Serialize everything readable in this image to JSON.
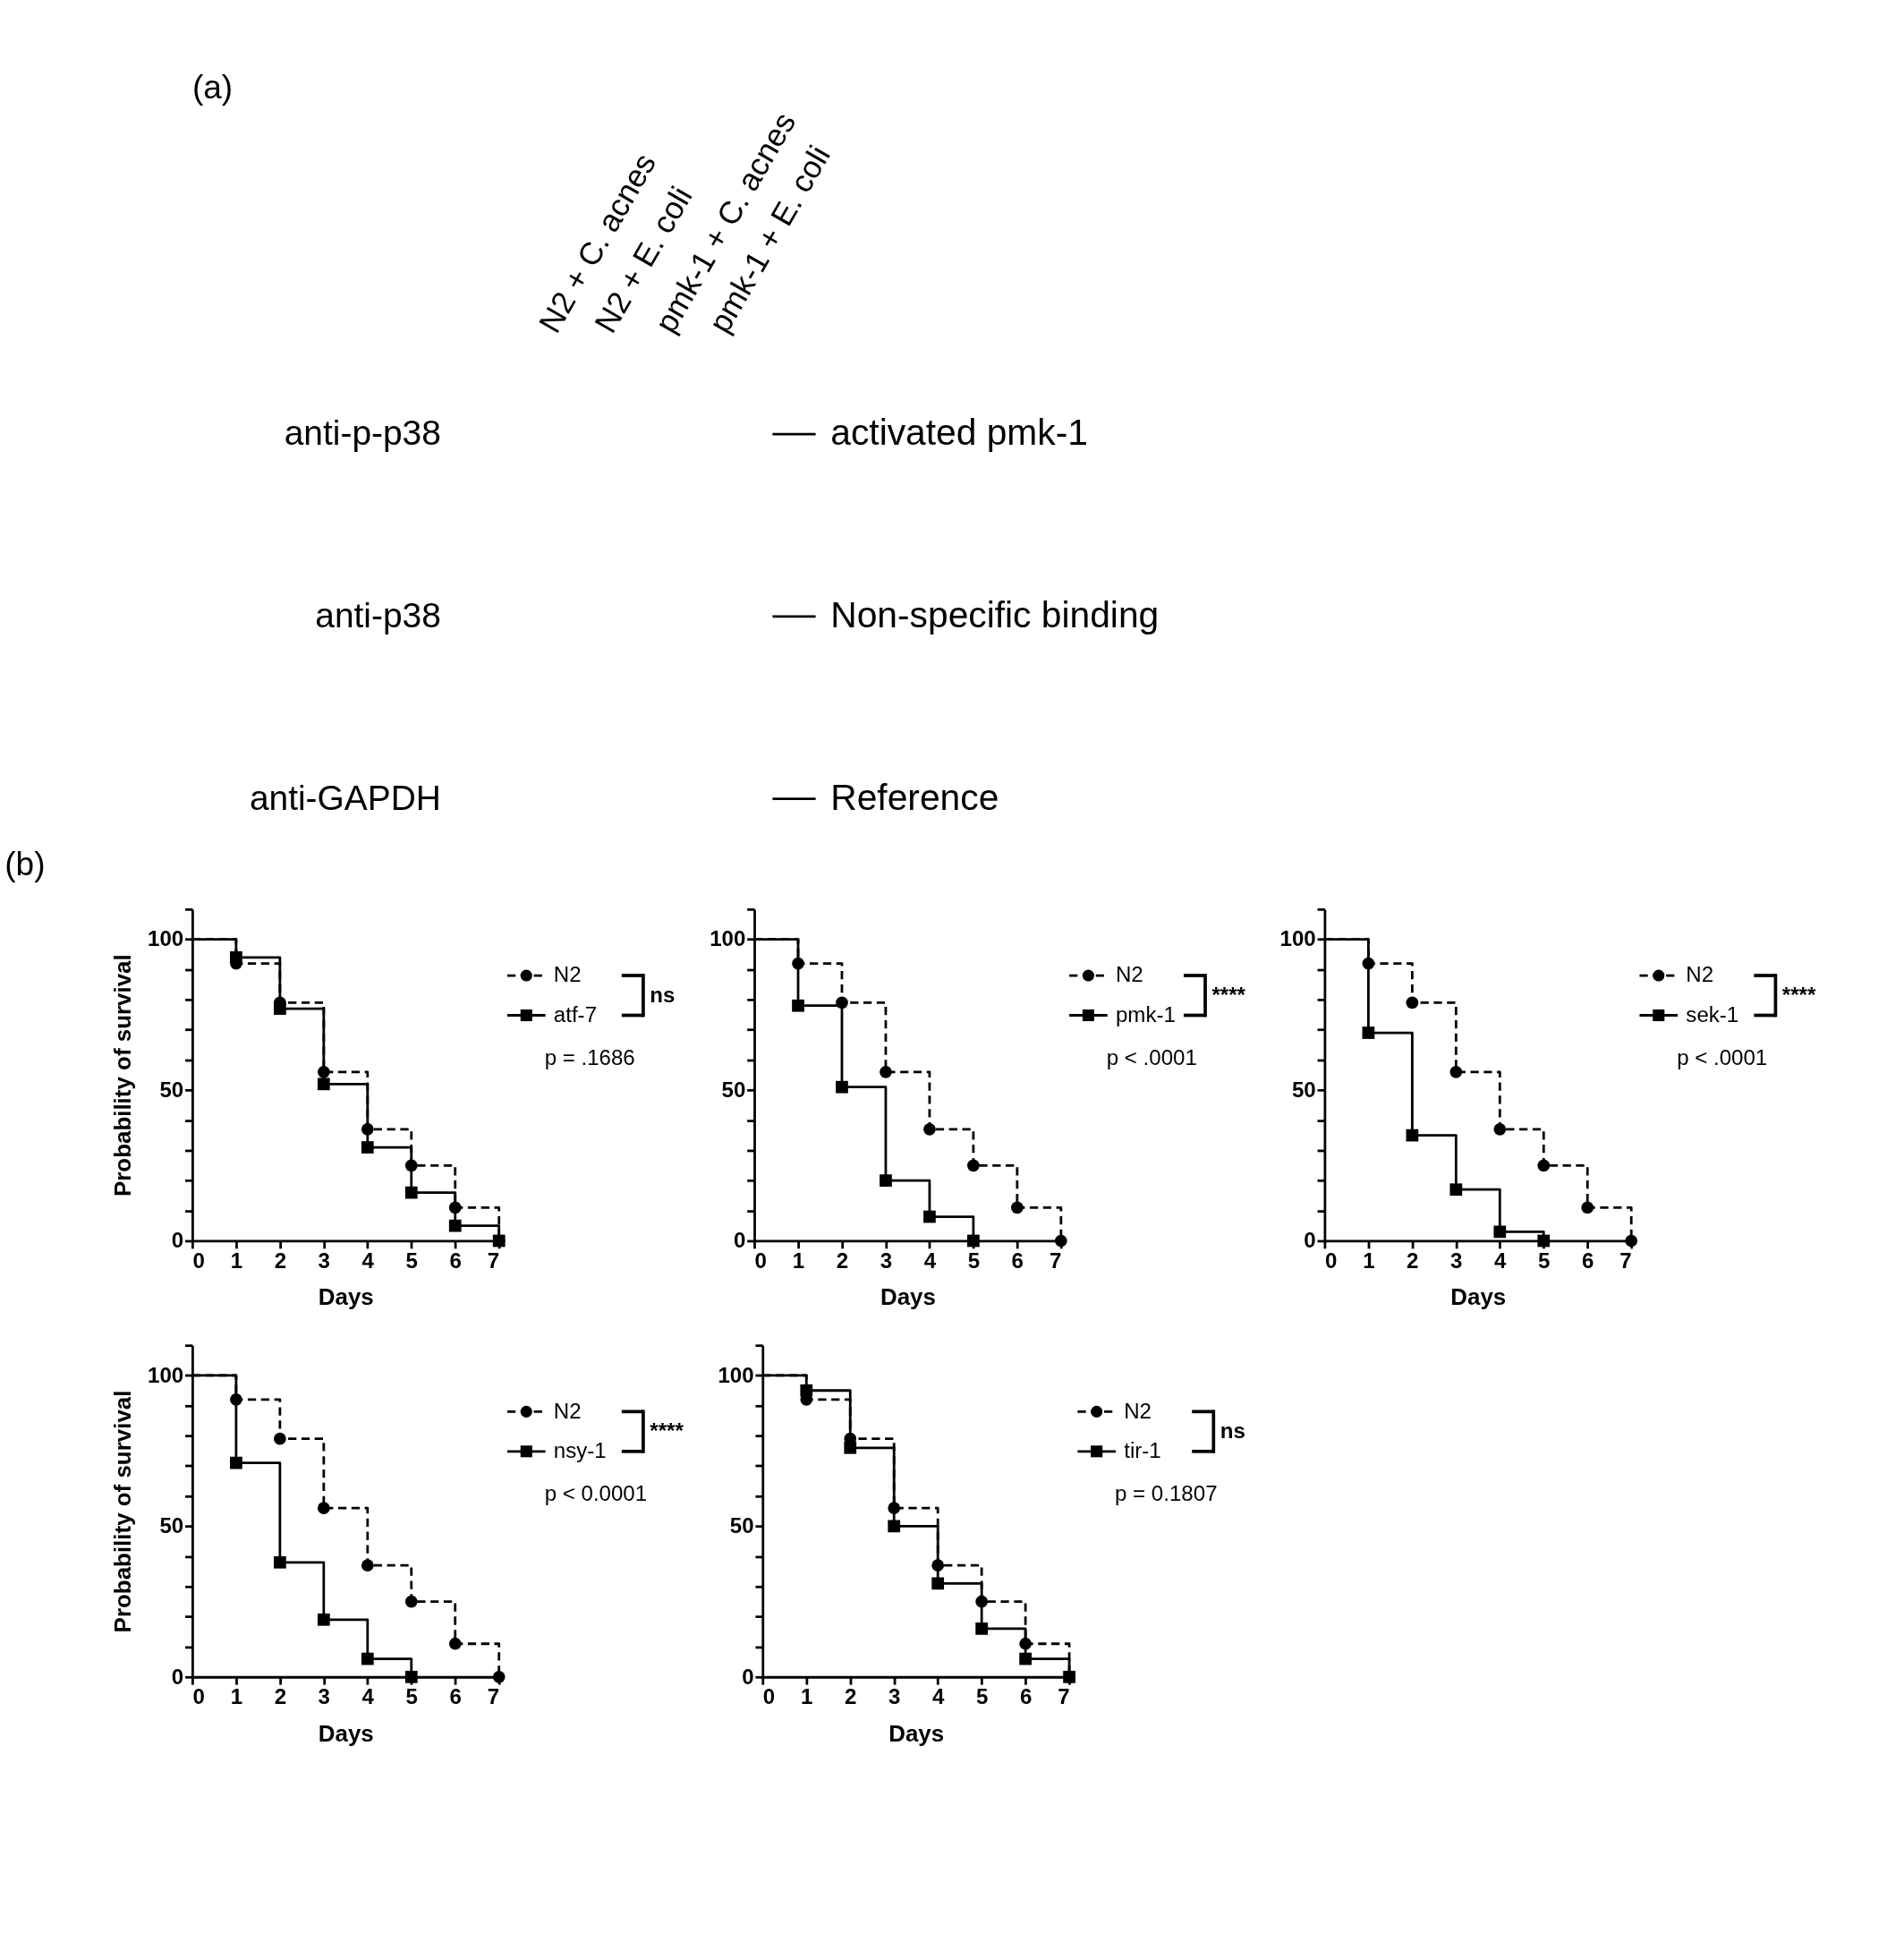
{
  "chart_data": [
    {
      "type": "other",
      "title": "(a)",
      "annotations": [
        "N2 + C. acnes",
        "N2 + E. coli",
        "pmk-1 + C. acnes",
        "pmk-1 + E. coli",
        "anti-p-p38",
        "anti-p38",
        "anti-GAPDH",
        "activated pmk-1",
        "Non-specific binding",
        "Reference"
      ]
    },
    {
      "type": "step",
      "title": "(b)",
      "xlabel": "Days",
      "ylabel": "Probability of survival",
      "xlim": [
        0,
        7
      ],
      "xticks": [
        0,
        1,
        2,
        3,
        4,
        5,
        6,
        7
      ],
      "ylim": [
        0,
        110
      ],
      "yticks": [
        0,
        {
          "value": 10,
          "label": null
        },
        {
          "value": 20,
          "label": null
        },
        {
          "value": 30,
          "label": null
        },
        {
          "value": 40,
          "label": null
        },
        50,
        {
          "value": 60,
          "label": null
        },
        {
          "value": 70,
          "label": null
        },
        {
          "value": 80,
          "label": null
        },
        {
          "value": 90,
          "label": null
        },
        100,
        {
          "value": 110,
          "label": null
        }
      ],
      "legend": "right",
      "annotations": [
        "ns",
        "p = .1686"
      ],
      "series": [
        {
          "name": "N2",
          "color": "#000000",
          "marker": "circle",
          "line_style": "dashed",
          "x": [
            0,
            1,
            2,
            3,
            4,
            5,
            6,
            7
          ],
          "values": [
            100,
            92,
            79,
            56,
            37,
            25,
            11,
            0
          ]
        },
        {
          "name": "atf-7",
          "color": "#000000",
          "marker": "square",
          "line_style": "solid",
          "x": [
            0,
            1,
            2,
            3,
            4,
            5,
            6,
            7
          ],
          "values": [
            100,
            94,
            77,
            52,
            31,
            16,
            5,
            0
          ]
        }
      ]
    },
    {
      "type": "step",
      "xlabel": "Days",
      "xlim": [
        0,
        7
      ],
      "xticks": [
        0,
        1,
        2,
        3,
        4,
        5,
        6,
        7
      ],
      "ylim": [
        0,
        110
      ],
      "yticks": [
        0,
        {
          "value": 10,
          "label": null
        },
        {
          "value": 20,
          "label": null
        },
        {
          "value": 30,
          "label": null
        },
        {
          "value": 40,
          "label": null
        },
        50,
        {
          "value": 60,
          "label": null
        },
        {
          "value": 70,
          "label": null
        },
        {
          "value": 80,
          "label": null
        },
        {
          "value": 90,
          "label": null
        },
        100,
        {
          "value": 110,
          "label": null
        }
      ],
      "legend": "right",
      "annotations": [
        "****",
        "p < .0001"
      ],
      "series": [
        {
          "name": "N2",
          "color": "#000000",
          "marker": "circle",
          "line_style": "dashed",
          "x": [
            0,
            1,
            2,
            3,
            4,
            5,
            6,
            7
          ],
          "values": [
            100,
            92,
            79,
            56,
            37,
            25,
            11,
            0
          ]
        },
        {
          "name": "pmk-1",
          "color": "#000000",
          "marker": "square",
          "line_style": "solid",
          "x": [
            0,
            1,
            2,
            3,
            4,
            5
          ],
          "values": [
            100,
            78,
            51,
            20,
            8,
            0
          ]
        }
      ]
    },
    {
      "type": "step",
      "xlabel": "Days",
      "xlim": [
        0,
        7
      ],
      "xticks": [
        0,
        1,
        2,
        3,
        4,
        5,
        6,
        7
      ],
      "ylim": [
        0,
        110
      ],
      "yticks": [
        0,
        {
          "value": 10,
          "label": null
        },
        {
          "value": 20,
          "label": null
        },
        {
          "value": 30,
          "label": null
        },
        {
          "value": 40,
          "label": null
        },
        50,
        {
          "value": 60,
          "label": null
        },
        {
          "value": 70,
          "label": null
        },
        {
          "value": 80,
          "label": null
        },
        {
          "value": 90,
          "label": null
        },
        100,
        {
          "value": 110,
          "label": null
        }
      ],
      "legend": "right",
      "annotations": [
        "****",
        "p < .0001"
      ],
      "series": [
        {
          "name": "N2",
          "color": "#000000",
          "marker": "circle",
          "line_style": "dashed",
          "x": [
            0,
            1,
            2,
            3,
            4,
            5,
            6,
            7
          ],
          "values": [
            100,
            92,
            79,
            56,
            37,
            25,
            11,
            0
          ]
        },
        {
          "name": "sek-1",
          "color": "#000000",
          "marker": "square",
          "line_style": "solid",
          "x": [
            0,
            1,
            2,
            3,
            4,
            5
          ],
          "values": [
            100,
            69,
            35,
            17,
            3,
            0
          ]
        }
      ]
    },
    {
      "type": "step",
      "xlabel": "Days",
      "ylabel": "Probability of survival",
      "xlim": [
        0,
        7
      ],
      "xticks": [
        0,
        1,
        2,
        3,
        4,
        5,
        6,
        7
      ],
      "ylim": [
        0,
        110
      ],
      "yticks": [
        0,
        {
          "value": 10,
          "label": null
        },
        {
          "value": 20,
          "label": null
        },
        {
          "value": 30,
          "label": null
        },
        {
          "value": 40,
          "label": null
        },
        50,
        {
          "value": 60,
          "label": null
        },
        {
          "value": 70,
          "label": null
        },
        {
          "value": 80,
          "label": null
        },
        {
          "value": 90,
          "label": null
        },
        100,
        {
          "value": 110,
          "label": null
        }
      ],
      "legend": "right",
      "annotations": [
        "****",
        "p < 0.0001"
      ],
      "series": [
        {
          "name": "N2",
          "color": "#000000",
          "marker": "circle",
          "line_style": "dashed",
          "x": [
            0,
            1,
            2,
            3,
            4,
            5,
            6,
            7
          ],
          "values": [
            100,
            92,
            79,
            56,
            37,
            25,
            11,
            0
          ]
        },
        {
          "name": "nsy-1",
          "color": "#000000",
          "marker": "square",
          "line_style": "solid",
          "x": [
            0,
            1,
            2,
            3,
            4,
            5
          ],
          "values": [
            100,
            71,
            38,
            19,
            6,
            0
          ]
        }
      ]
    },
    {
      "type": "step",
      "xlabel": "Days",
      "xlim": [
        0,
        7
      ],
      "xticks": [
        0,
        1,
        2,
        3,
        4,
        5,
        6,
        7
      ],
      "ylim": [
        0,
        110
      ],
      "yticks": [
        0,
        {
          "value": 10,
          "label": null
        },
        {
          "value": 20,
          "label": null
        },
        {
          "value": 30,
          "label": null
        },
        {
          "value": 40,
          "label": null
        },
        50,
        {
          "value": 60,
          "label": null
        },
        {
          "value": 70,
          "label": null
        },
        {
          "value": 80,
          "label": null
        },
        {
          "value": 90,
          "label": null
        },
        100,
        {
          "value": 110,
          "label": null
        }
      ],
      "legend": "right",
      "annotations": [
        "ns",
        "p = 0.1807"
      ],
      "series": [
        {
          "name": "N2",
          "color": "#000000",
          "marker": "circle",
          "line_style": "dashed",
          "x": [
            0,
            1,
            2,
            3,
            4,
            5,
            6,
            7
          ],
          "values": [
            100,
            92,
            79,
            56,
            37,
            25,
            11,
            0
          ]
        },
        {
          "name": "tir-1",
          "color": "#000000",
          "marker": "square",
          "line_style": "solid",
          "x": [
            0,
            1,
            2,
            3,
            4,
            5,
            6,
            7
          ],
          "values": [
            100,
            95,
            76,
            50,
            31,
            16,
            6,
            0
          ]
        }
      ]
    }
  ]
}
